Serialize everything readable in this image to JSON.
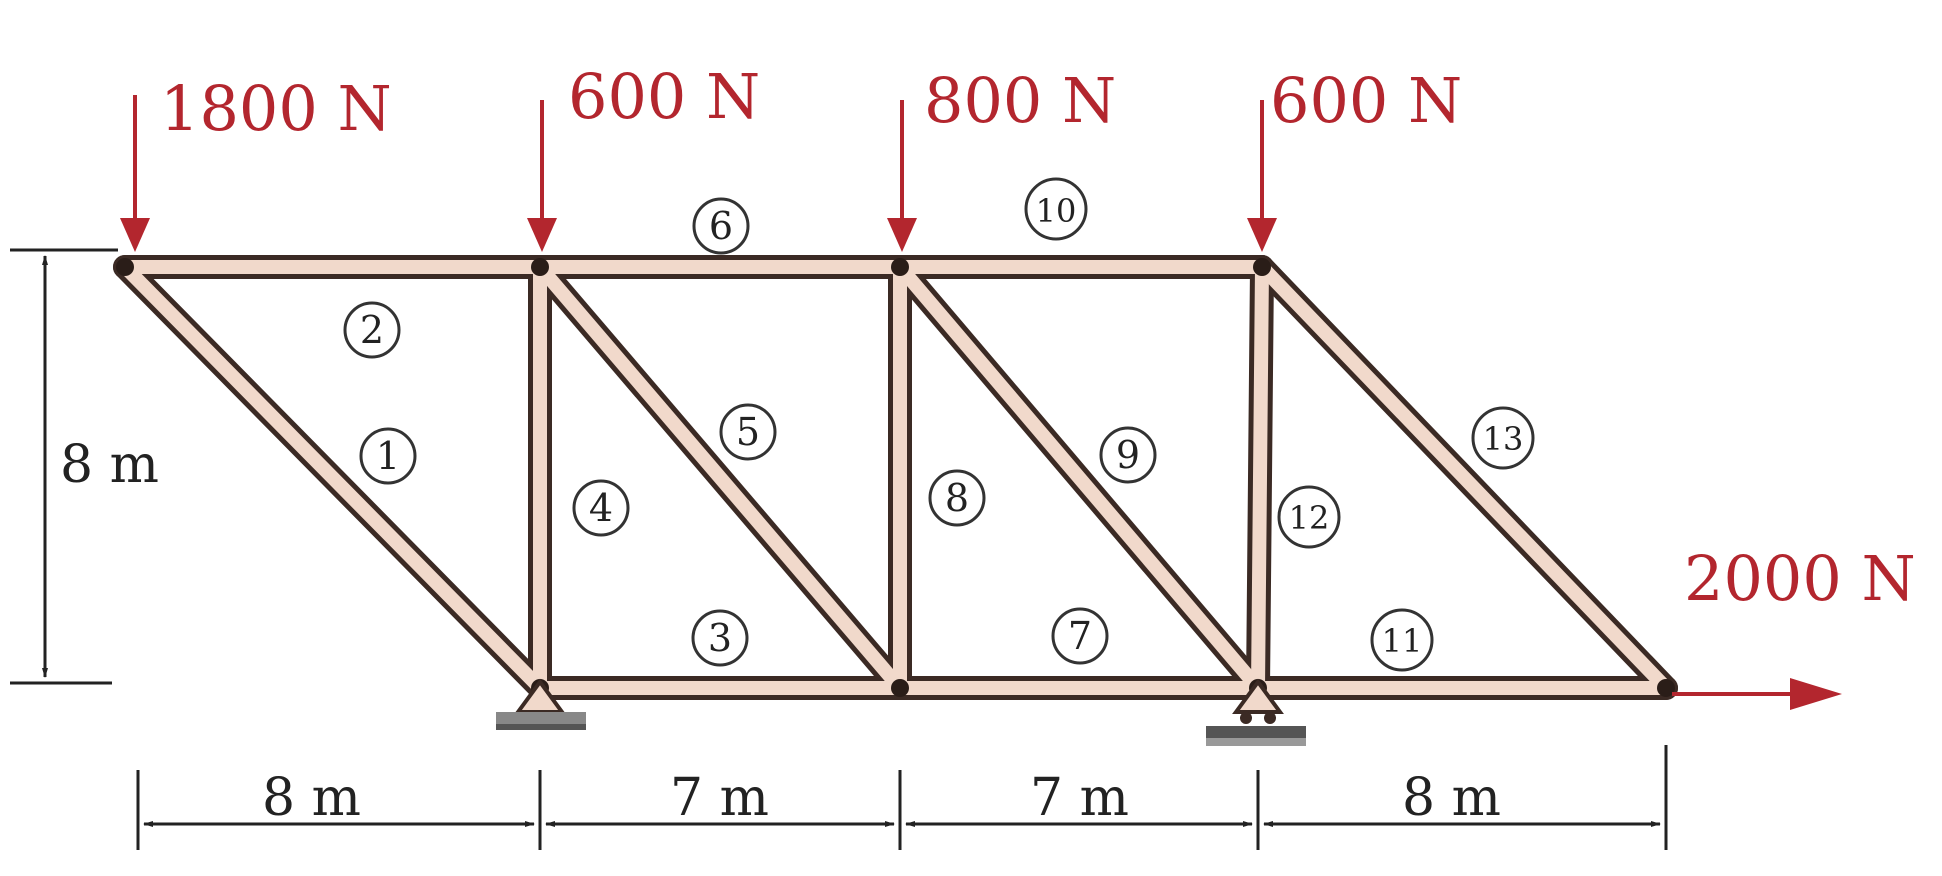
{
  "loads": [
    {
      "value": "1800 N"
    },
    {
      "value": "600 N"
    },
    {
      "value": "800 N"
    },
    {
      "value": "600 N"
    },
    {
      "value": "2000 N"
    }
  ],
  "members": [
    "1",
    "2",
    "3",
    "4",
    "5",
    "6",
    "7",
    "8",
    "9",
    "10",
    "11",
    "12",
    "13"
  ],
  "dimensions": {
    "height": "8 m",
    "spans": [
      "8 m",
      "7 m",
      "7 m",
      "8 m"
    ]
  },
  "colors": {
    "member_fill": "#f1d9cb",
    "member_edge": "#3b2a24",
    "load_arrow": "#b3262e",
    "dim_line": "#222222"
  }
}
